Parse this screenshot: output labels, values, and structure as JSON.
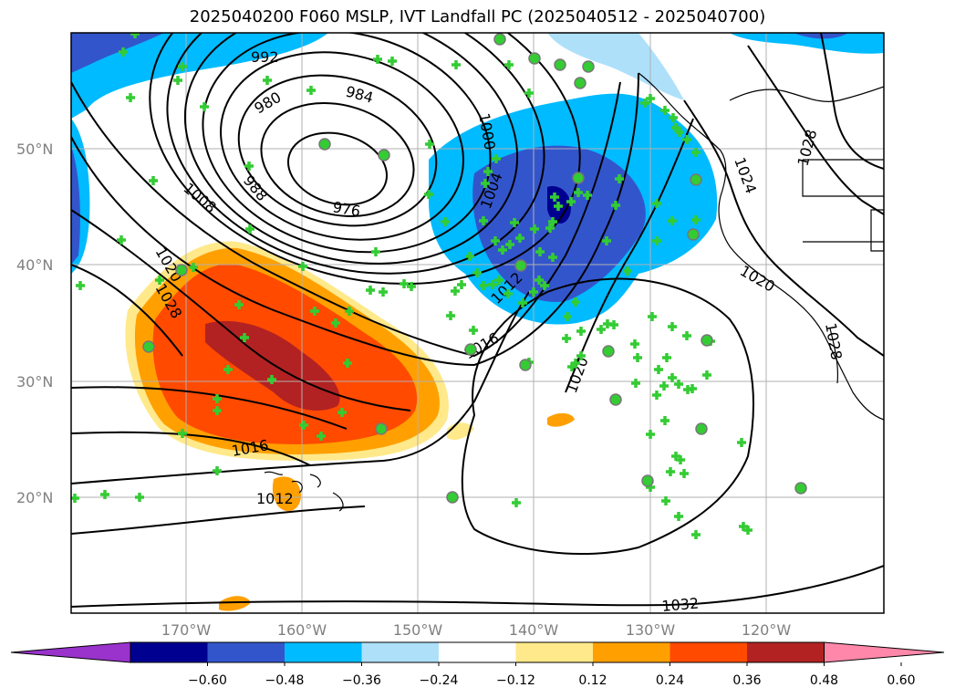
{
  "title": "2025040200 F060 MSLP, IVT Landfall PC (2025040512 - 2025040700)",
  "latitudes": [
    "50°N",
    "40°N",
    "30°N",
    "20°N"
  ],
  "longitudes": [
    "170°W",
    "160°W",
    "150°W",
    "140°W",
    "130°W",
    "120°W"
  ],
  "isobar_labels": [
    "992",
    "980",
    "984",
    "976",
    "988",
    "1008",
    "1000",
    "1004",
    "1012",
    "1016",
    "1020",
    "1024",
    "1028",
    "1032",
    "1012",
    "1016",
    "1020",
    "1020",
    "1028",
    "1028"
  ],
  "colorbar": {
    "ticks": [
      "−0.60",
      "−0.48",
      "−0.36",
      "−0.24",
      "−0.12",
      "0.12",
      "0.24",
      "0.36",
      "0.48",
      "0.60"
    ],
    "colors": [
      "#9933cc",
      "#000090",
      "#3355cc",
      "#00bbff",
      "#aee0fa",
      "#ffffff",
      "#ffe98a",
      "#ffa000",
      "#ff4a00",
      "#b22222",
      "#ff88aa"
    ]
  }
}
